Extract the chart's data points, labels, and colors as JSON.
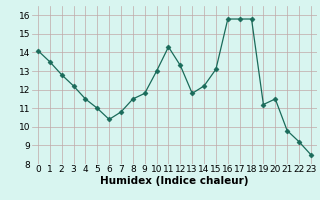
{
  "x": [
    0,
    1,
    2,
    3,
    4,
    5,
    6,
    7,
    8,
    9,
    10,
    11,
    12,
    13,
    14,
    15,
    16,
    17,
    18,
    19,
    20,
    21,
    22,
    23
  ],
  "y": [
    14.1,
    13.5,
    12.8,
    12.2,
    11.5,
    11.0,
    10.4,
    10.8,
    11.5,
    11.8,
    13.0,
    14.3,
    13.3,
    11.8,
    12.2,
    13.1,
    15.8,
    15.8,
    15.8,
    11.2,
    11.5,
    9.8,
    9.2,
    8.5
  ],
  "xlabel": "Humidex (Indice chaleur)",
  "ylim": [
    8,
    16.5
  ],
  "yticks": [
    8,
    9,
    10,
    11,
    12,
    13,
    14,
    15,
    16
  ],
  "xticks": [
    0,
    1,
    2,
    3,
    4,
    5,
    6,
    7,
    8,
    9,
    10,
    11,
    12,
    13,
    14,
    15,
    16,
    17,
    18,
    19,
    20,
    21,
    22,
    23
  ],
  "line_color": "#1a6b5a",
  "marker": "D",
  "marker_size": 2.5,
  "bg_color": "#d8f5f0",
  "grid_color": "#c0a8a8",
  "xlabel_fontsize": 7.5,
  "tick_fontsize": 6.5
}
